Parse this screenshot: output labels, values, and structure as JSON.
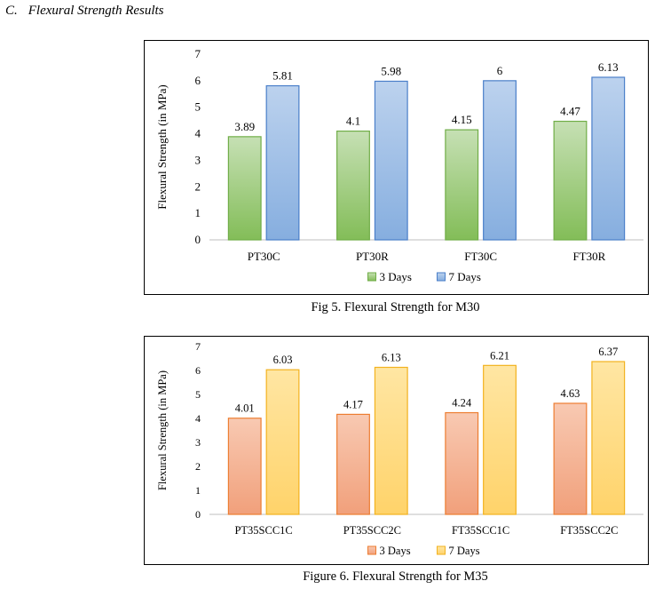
{
  "section": {
    "number": "C.",
    "title": "Flexural Strength Results"
  },
  "chart_data": [
    {
      "type": "bar",
      "categories": [
        "PT30C",
        "PT30R",
        "FT30C",
        "FT30R"
      ],
      "series": [
        {
          "name": "3 Days",
          "values": [
            3.89,
            4.1,
            4.15,
            4.47
          ],
          "labels": [
            "3.89",
            "4.1",
            "4.15",
            "4.47"
          ]
        },
        {
          "name": "7 Days",
          "values": [
            5.81,
            5.98,
            6,
            6.13
          ],
          "labels": [
            "5.81",
            "5.98",
            "6",
            "6.13"
          ]
        }
      ],
      "ylabel": "Flexural Strength (in MPa)",
      "xlabel": "",
      "ylim": [
        0,
        7
      ],
      "yticks": [
        "0",
        "1",
        "2",
        "3",
        "4",
        "5",
        "6",
        "7"
      ],
      "grid": false,
      "legend": "bottom",
      "colors": {
        "s1_fill_top": "#c6e0b4",
        "s1_fill_bottom": "#83bd58",
        "s1_stroke": "#70ad47",
        "s2_fill_top": "#bcd2ee",
        "s2_fill_bottom": "#86aedf",
        "s2_stroke": "#4a7fc9"
      },
      "caption": "Fig 5. Flexural Strength for M30"
    },
    {
      "type": "bar",
      "categories": [
        "PT35SCC1C",
        "PT35SCC2C",
        "FT35SCC1C",
        "FT35SCC2C"
      ],
      "series": [
        {
          "name": "3 Days",
          "values": [
            4.01,
            4.17,
            4.24,
            4.63
          ],
          "labels": [
            "4.01",
            "4.17",
            "4.24",
            "4.63"
          ]
        },
        {
          "name": "7 Days",
          "values": [
            6.03,
            6.13,
            6.21,
            6.37
          ],
          "labels": [
            "6.03",
            "6.13",
            "6.21",
            "6.37"
          ]
        }
      ],
      "ylabel": "Flexural Strength (in MPa)",
      "xlabel": "",
      "ylim": [
        0,
        7
      ],
      "yticks": [
        "0",
        "1",
        "2",
        "3",
        "4",
        "5",
        "6",
        "7"
      ],
      "grid": false,
      "legend": "bottom",
      "colors": {
        "s1_fill_top": "#f8c9b2",
        "s1_fill_bottom": "#f1a07b",
        "s1_stroke": "#ed7d31",
        "s2_fill_top": "#ffe6a3",
        "s2_fill_bottom": "#ffd36a",
        "s2_stroke": "#f2b21f"
      },
      "caption": "Figure 6. Flexural Strength for M35"
    }
  ]
}
